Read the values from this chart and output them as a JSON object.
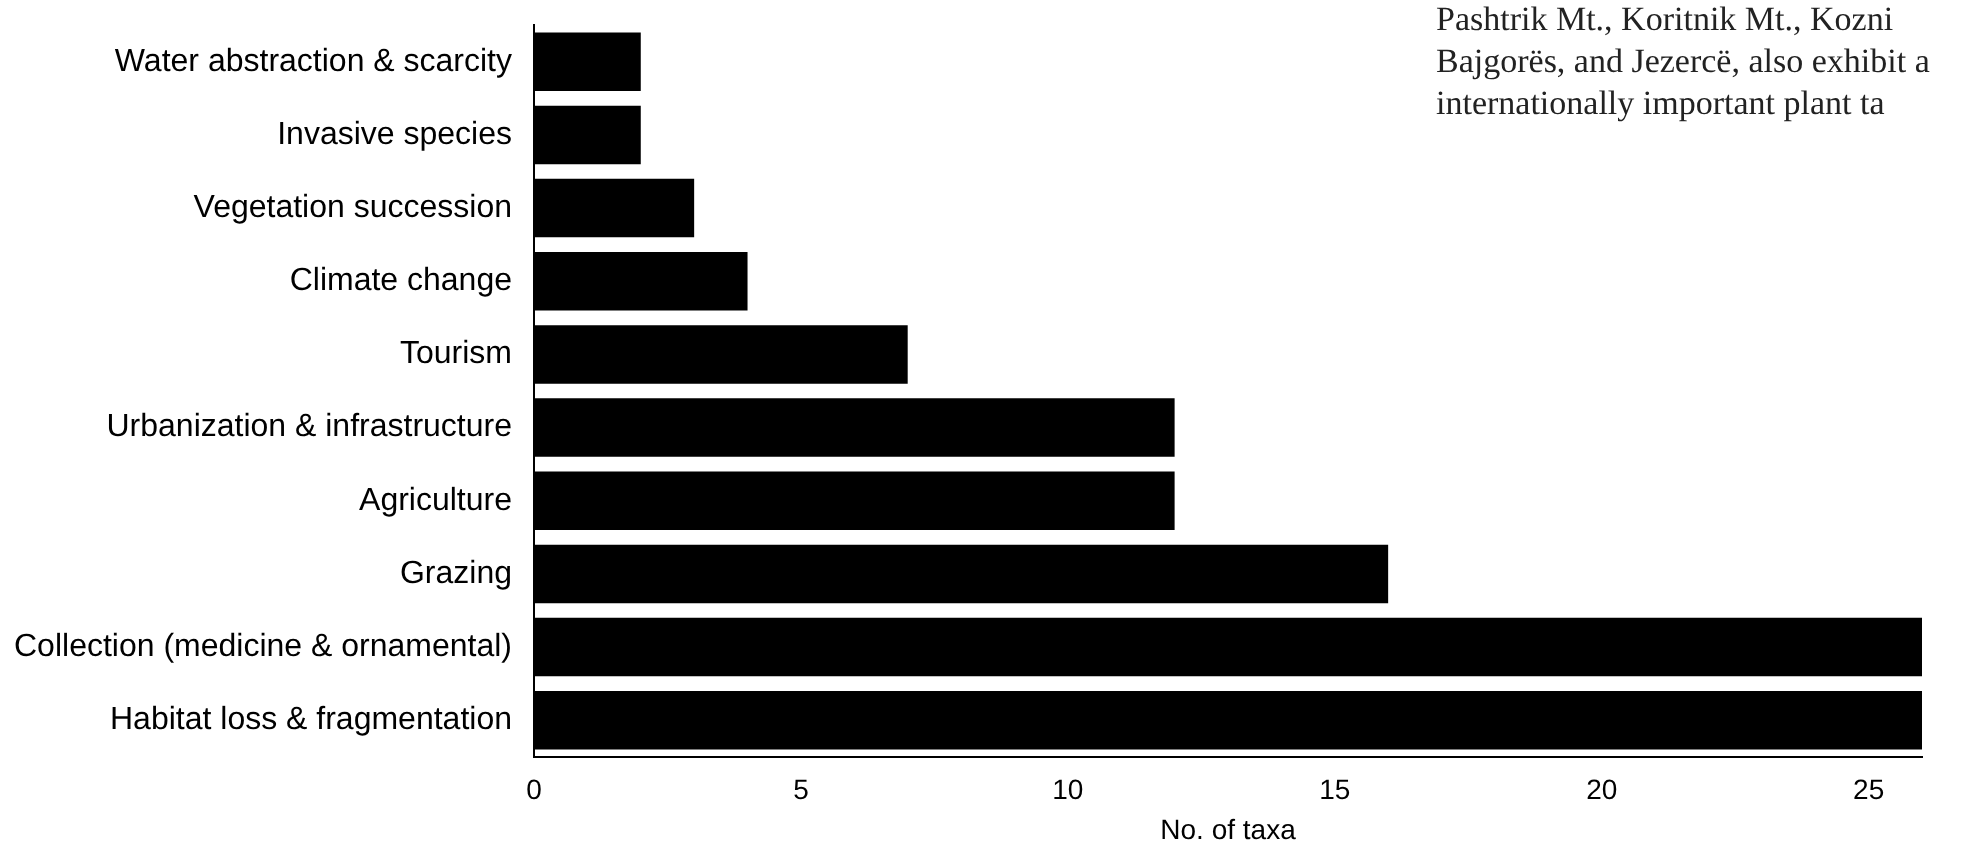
{
  "chart_data": {
    "type": "bar",
    "orientation": "horizontal",
    "xlabel": "No. of taxa",
    "categories": [
      "Water abstraction & scarcity",
      "Invasive species",
      "Vegetation succession",
      "Climate change",
      "Tourism",
      "Urbanization & infrastructure",
      "Agriculture",
      "Grazing",
      "Collection (medicine & ornamental)",
      "Habitat loss & fragmentation"
    ],
    "values": [
      2,
      2,
      3,
      4,
      7,
      12,
      12,
      16,
      26,
      26
    ],
    "color": "#000000",
    "xlim": [
      0,
      26
    ],
    "xticks": [
      0,
      5,
      10,
      15,
      20,
      25
    ],
    "grid": false,
    "legend": false,
    "annotations": [
      "Pashtrik Mt., Koritnik Mt., Kozni",
      "Bajgorës, and Jezercë, also exhibit a",
      "internationally important plant ta"
    ]
  }
}
